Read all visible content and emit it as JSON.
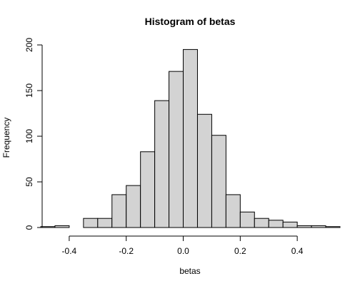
{
  "chart_data": {
    "type": "bar",
    "subtype": "histogram",
    "title": "Histogram of betas",
    "xlabel": "betas",
    "ylabel": "Frequency",
    "bin_width": 0.05,
    "bins": [
      {
        "start": -0.5,
        "end": -0.45,
        "count": 1
      },
      {
        "start": -0.45,
        "end": -0.4,
        "count": 2
      },
      {
        "start": -0.4,
        "end": -0.35,
        "count": 0
      },
      {
        "start": -0.35,
        "end": -0.3,
        "count": 10
      },
      {
        "start": -0.3,
        "end": -0.25,
        "count": 10
      },
      {
        "start": -0.25,
        "end": -0.2,
        "count": 36
      },
      {
        "start": -0.2,
        "end": -0.15,
        "count": 46
      },
      {
        "start": -0.15,
        "end": -0.1,
        "count": 83
      },
      {
        "start": -0.1,
        "end": -0.05,
        "count": 139
      },
      {
        "start": -0.05,
        "end": 0.0,
        "count": 171
      },
      {
        "start": 0.0,
        "end": 0.05,
        "count": 195
      },
      {
        "start": 0.05,
        "end": 0.1,
        "count": 124
      },
      {
        "start": 0.1,
        "end": 0.15,
        "count": 101
      },
      {
        "start": 0.15,
        "end": 0.2,
        "count": 36
      },
      {
        "start": 0.2,
        "end": 0.25,
        "count": 17
      },
      {
        "start": 0.25,
        "end": 0.3,
        "count": 10
      },
      {
        "start": 0.3,
        "end": 0.35,
        "count": 8
      },
      {
        "start": 0.35,
        "end": 0.4,
        "count": 6
      },
      {
        "start": 0.4,
        "end": 0.45,
        "count": 2
      },
      {
        "start": 0.45,
        "end": 0.5,
        "count": 2
      },
      {
        "start": 0.5,
        "end": 0.55,
        "count": 1
      }
    ],
    "xlim": [
      -0.5,
      0.55
    ],
    "ylim": [
      0,
      200
    ],
    "x_ticks": [
      -0.4,
      -0.2,
      0.0,
      0.2,
      0.4
    ],
    "x_tick_labels": [
      "-0.4",
      "-0.2",
      "0.0",
      "0.2",
      "0.4"
    ],
    "y_ticks": [
      0,
      50,
      100,
      150,
      200
    ],
    "y_tick_labels": [
      "0",
      "50",
      "100",
      "150",
      "200"
    ],
    "grid": false,
    "colors": {
      "bar_fill": "#d3d3d3",
      "bar_stroke": "#000000",
      "axis": "#000000",
      "background": "#ffffff"
    }
  }
}
